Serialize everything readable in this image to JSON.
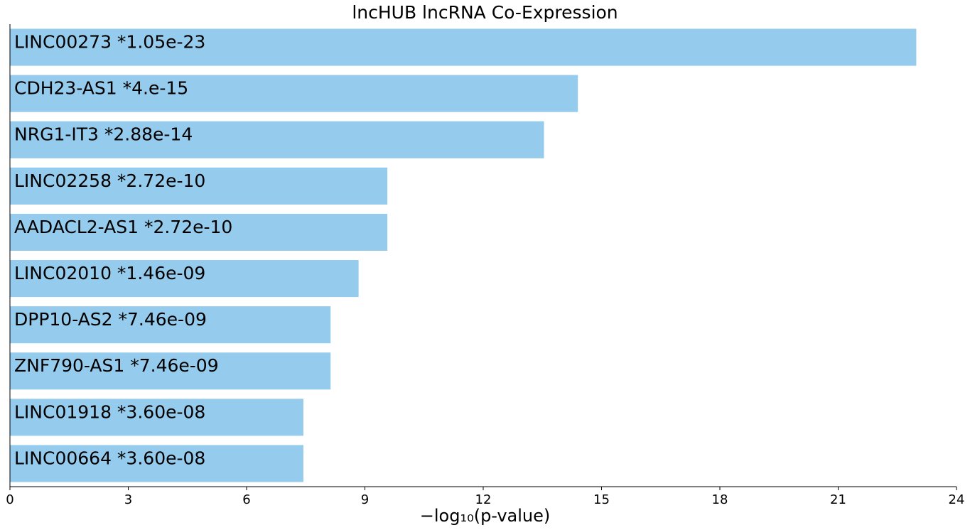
{
  "chart_data": {
    "type": "bar",
    "orientation": "horizontal",
    "title": "lncHUB lncRNA Co-Expression",
    "xlabel": "−log₁₀(p-value)",
    "ylabel": "",
    "xlim": [
      0,
      24
    ],
    "xticks": [
      0,
      3,
      6,
      9,
      12,
      15,
      18,
      21,
      24
    ],
    "grid": false,
    "bar_color": "#95cbec",
    "categories": [
      "LINC00273  *1.05e-23",
      "CDH23-AS1  *4.e-15",
      "NRG1-IT3  *2.88e-14",
      "LINC02258  *2.72e-10",
      "AADACL2-AS1  *2.72e-10",
      "LINC02010  *1.46e-09",
      "DPP10-AS2  *7.46e-09",
      "ZNF790-AS1  *7.46e-09",
      "LINC01918  *3.60e-08",
      "LINC00664  *3.60e-08"
    ],
    "values": [
      22.98,
      14.4,
      13.54,
      9.57,
      9.57,
      8.84,
      8.13,
      8.13,
      7.44,
      7.44
    ]
  }
}
